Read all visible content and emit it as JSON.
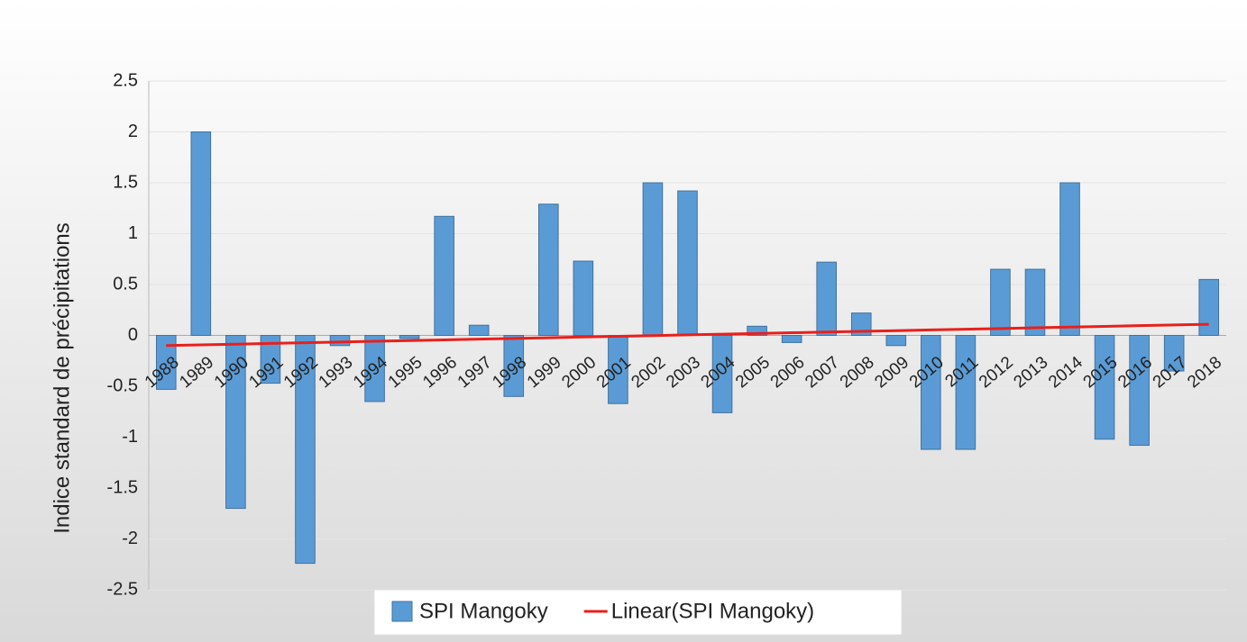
{
  "chart_data": {
    "type": "bar",
    "y_label": "Indice standard de précipitations",
    "categories": [
      "1988",
      "1989",
      "1990",
      "1991",
      "1992",
      "1993",
      "1994",
      "1995",
      "1996",
      "1997",
      "1998",
      "1999",
      "2000",
      "2001",
      "2002",
      "2003",
      "2004",
      "2005",
      "2006",
      "2007",
      "2008",
      "2009",
      "2010",
      "2011",
      "2012",
      "2013",
      "2014",
      "2015",
      "2016",
      "2017",
      "2018"
    ],
    "series": [
      {
        "name": "SPI Mangoky",
        "color": "#5b9bd5",
        "type": "bar",
        "values": [
          -0.53,
          2.0,
          -1.7,
          -0.47,
          -2.24,
          -0.1,
          -0.65,
          -0.03,
          1.17,
          0.1,
          -0.6,
          1.29,
          0.73,
          -0.67,
          1.5,
          1.42,
          -0.76,
          0.09,
          -0.07,
          0.72,
          0.22,
          -0.1,
          -1.12,
          -1.12,
          0.65,
          0.65,
          1.5,
          -1.02,
          -1.08,
          -0.35,
          0.55
        ]
      },
      {
        "name": "Linear(SPI Mangoky)",
        "color": "#e8201c",
        "type": "line",
        "values": [
          -0.1,
          -0.093,
          -0.086,
          -0.079,
          -0.072,
          -0.065,
          -0.058,
          -0.051,
          -0.044,
          -0.037,
          -0.03,
          -0.023,
          -0.016,
          -0.009,
          -0.002,
          0.005,
          0.012,
          0.019,
          0.026,
          0.033,
          0.04,
          0.047,
          0.054,
          0.061,
          0.068,
          0.075,
          0.082,
          0.089,
          0.096,
          0.103,
          0.11
        ]
      }
    ],
    "ylim": [
      -2.5,
      2.5
    ],
    "yticks": [
      -2.5,
      -2,
      -1.5,
      -1,
      -0.5,
      0,
      0.5,
      1,
      1.5,
      2,
      2.5
    ],
    "grid": true,
    "legend": "bottom"
  }
}
